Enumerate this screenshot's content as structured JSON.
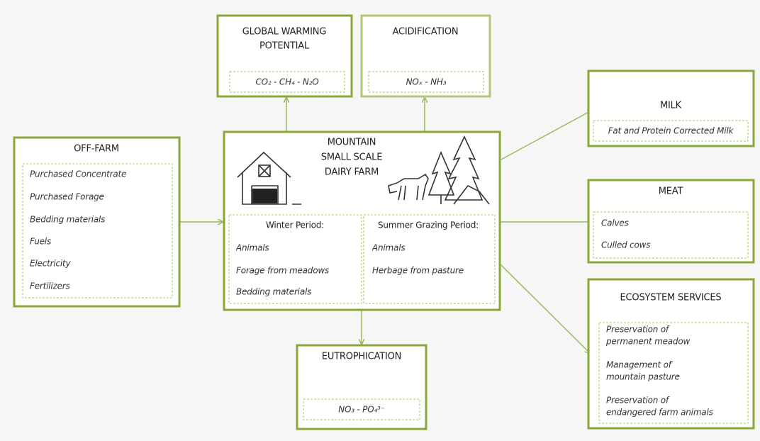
{
  "global_warming": {
    "title": [
      "GLOBAL WARMING",
      "POTENTIAL"
    ],
    "items": [
      "CO₂ - CH₄ - N₂O"
    ]
  },
  "acidification": {
    "title": [
      "ACIDIFICATION"
    ],
    "items": [
      "NOₓ - NH₃"
    ]
  },
  "off_farm": {
    "title": [
      "OFF-FARM"
    ],
    "items": [
      "Purchased Concentrate",
      "Purchased Forage",
      "Bedding materials",
      "Fuels",
      "Electricity",
      "Fertilizers"
    ]
  },
  "farm": {
    "title": [
      "MOUNTAIN",
      "SMALL SCALE",
      "DAIRY FARM"
    ],
    "winter": {
      "title": "Winter Period:",
      "items": [
        "Animals",
        "Forage from meadows",
        "Bedding materials"
      ]
    },
    "summer": {
      "title": "Summer Grazing Period:",
      "items": [
        "Animals",
        "Herbage from pasture"
      ]
    }
  },
  "eutrophication": {
    "title": [
      "EUTROPHICATION"
    ],
    "items": [
      "NO₃ - PO₄³⁻"
    ]
  },
  "milk": {
    "title": [
      "MILK"
    ],
    "items": [
      "Fat and Protein Corrected Milk"
    ]
  },
  "meat": {
    "title": [
      "MEAT"
    ],
    "items": [
      "Calves",
      "Culled cows"
    ]
  },
  "ecosystem_services": {
    "title": [
      "ECOSYSTEM SERVICES"
    ],
    "items": [
      [
        "Preservation of",
        "permanent meadow"
      ],
      [
        "Management of",
        "mountain pasture"
      ],
      [
        "Preservation of",
        "endangered farm animals"
      ]
    ]
  }
}
